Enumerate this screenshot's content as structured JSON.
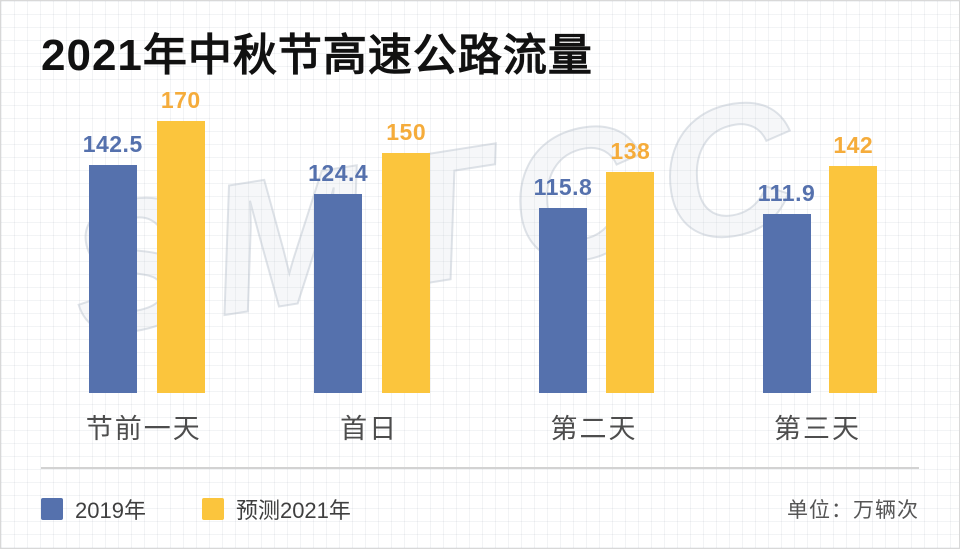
{
  "title": "2021年中秋节高速公路流量",
  "watermark": "SMTCC",
  "chart_data": {
    "type": "bar",
    "categories": [
      "节前一天",
      "首日",
      "第二天",
      "第三天"
    ],
    "series": [
      {
        "name": "2019年",
        "color": "#5571AD",
        "label_color": "#5571AD",
        "values": [
          142.5,
          124.4,
          115.8,
          111.9
        ]
      },
      {
        "name": "预测2021年",
        "color": "#FBC53D",
        "label_color": "#F5AC3B",
        "values": [
          170,
          150,
          138,
          142
        ]
      }
    ],
    "ylim": [
      0,
      170
    ],
    "grid": false,
    "legend_position": "bottom",
    "value_labels": "above-bars",
    "unit_label": "单位：万辆次"
  },
  "legend": {
    "items": [
      {
        "label": "2019年",
        "color": "#5571AD"
      },
      {
        "label": "预测2021年",
        "color": "#FBC53D"
      }
    ],
    "unit": "单位：万辆次"
  }
}
